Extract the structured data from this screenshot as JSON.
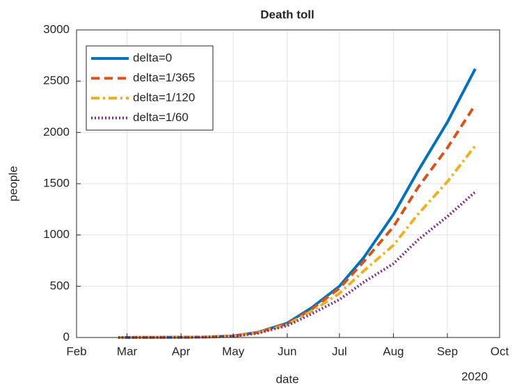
{
  "chart_data": {
    "type": "line",
    "title": "Death toll",
    "xlabel": "date",
    "ylabel": "people",
    "x_year_label": "2020",
    "x": [
      "2020-02-25",
      "2020-03-15",
      "2020-04-01",
      "2020-04-15",
      "2020-05-01",
      "2020-05-15",
      "2020-06-01",
      "2020-06-15",
      "2020-07-01",
      "2020-07-15",
      "2020-08-01",
      "2020-08-15",
      "2020-09-01",
      "2020-09-17"
    ],
    "series": [
      {
        "name": "delta=0",
        "color": "#0072BD",
        "dash": "solid",
        "values": [
          0,
          1,
          2,
          4,
          15,
          50,
          140,
          290,
          500,
          780,
          1200,
          1620,
          2100,
          2620
        ]
      },
      {
        "name": "delta=1/365",
        "color": "#D95319",
        "dash": "dashed",
        "values": [
          0,
          1,
          2,
          4,
          14,
          48,
          133,
          275,
          480,
          740,
          1080,
          1460,
          1850,
          2270
        ]
      },
      {
        "name": "delta=1/120",
        "color": "#EDB120",
        "dash": "dashdot",
        "values": [
          0,
          1,
          2,
          4,
          13,
          45,
          125,
          255,
          430,
          650,
          900,
          1200,
          1520,
          1870
        ]
      },
      {
        "name": "delta=1/60",
        "color": "#7E2F8E",
        "dash": "dotted",
        "values": [
          0,
          1,
          2,
          4,
          12,
          42,
          115,
          230,
          370,
          540,
          720,
          950,
          1180,
          1420
        ]
      }
    ],
    "xlim": [
      "2020-02-01",
      "2020-10-01"
    ],
    "xticks": [
      {
        "value": "2020-02-01",
        "label": "Feb"
      },
      {
        "value": "2020-03-01",
        "label": "Mar"
      },
      {
        "value": "2020-04-01",
        "label": "Apr"
      },
      {
        "value": "2020-05-01",
        "label": "May"
      },
      {
        "value": "2020-06-01",
        "label": "Jun"
      },
      {
        "value": "2020-07-01",
        "label": "Jul"
      },
      {
        "value": "2020-08-01",
        "label": "Aug"
      },
      {
        "value": "2020-09-01",
        "label": "Sep"
      },
      {
        "value": "2020-10-01",
        "label": "Oct"
      }
    ],
    "ylim": [
      0,
      3000
    ],
    "yticks": [
      0,
      500,
      1000,
      1500,
      2000,
      2500,
      3000
    ],
    "grid": true,
    "legend": "upper left"
  }
}
